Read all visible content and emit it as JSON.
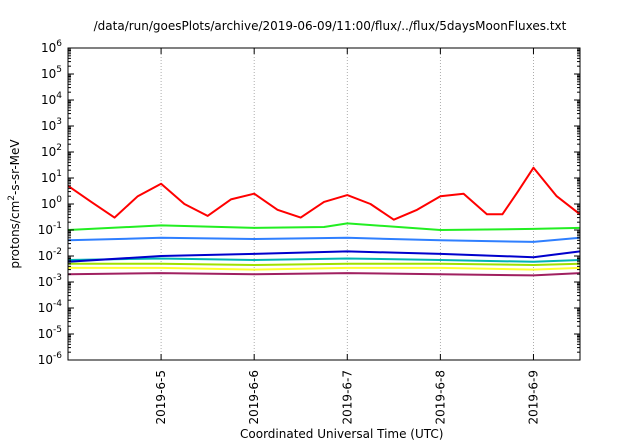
{
  "chart_data": {
    "type": "line",
    "title": "/data/run/goesPlots/archive/2019-06-09/11:00/flux/../flux/5daysMoonFluxes.txt",
    "xlabel": "Coordinated Universal Time (UTC)",
    "ylabel": "protons/cm2-s-sr-MeV",
    "ylabel_parts": {
      "base": "protons/cm",
      "sup": "2",
      "rest": "-s-sr-MeV"
    },
    "y_scale": "log",
    "ylim": [
      1e-06,
      1000000.0
    ],
    "y_ticks": [
      {
        "value": 1e-06,
        "base": "10",
        "exp": "-6"
      },
      {
        "value": 1e-05,
        "base": "10",
        "exp": "-5"
      },
      {
        "value": 0.0001,
        "base": "10",
        "exp": "-4"
      },
      {
        "value": 0.001,
        "base": "10",
        "exp": "-3"
      },
      {
        "value": 0.01,
        "base": "10",
        "exp": "-2"
      },
      {
        "value": 0.1,
        "base": "10",
        "exp": "-1"
      },
      {
        "value": 1,
        "base": "10",
        "exp": "0"
      },
      {
        "value": 10,
        "base": "10",
        "exp": "1"
      },
      {
        "value": 100,
        "base": "10",
        "exp": "2"
      },
      {
        "value": 1000,
        "base": "10",
        "exp": "3"
      },
      {
        "value": 10000,
        "base": "10",
        "exp": "4"
      },
      {
        "value": 100000,
        "base": "10",
        "exp": "5"
      },
      {
        "value": 1000000,
        "base": "10",
        "exp": "6"
      }
    ],
    "xlim": [
      "2019-06-04T00:00",
      "2019-06-09T12:00"
    ],
    "x_ticks": [
      "2019-6-5",
      "2019-6-6",
      "2019-6-7",
      "2019-6-8",
      "2019-6-9"
    ],
    "x_tick_dates": [
      "2019-06-05T00:00",
      "2019-06-06T00:00",
      "2019-06-07T00:00",
      "2019-06-08T00:00",
      "2019-06-09T00:00"
    ],
    "grid": true,
    "legend": "none",
    "series": [
      {
        "color": "#ff0000",
        "x": [
          "2019-06-04T00:00",
          "2019-06-04T06:00",
          "2019-06-04T12:00",
          "2019-06-04T18:00",
          "2019-06-05T00:00",
          "2019-06-05T06:00",
          "2019-06-05T12:00",
          "2019-06-05T18:00",
          "2019-06-06T00:00",
          "2019-06-06T06:00",
          "2019-06-06T12:00",
          "2019-06-06T18:00",
          "2019-06-07T00:00",
          "2019-06-07T06:00",
          "2019-06-07T12:00",
          "2019-06-07T18:00",
          "2019-06-08T00:00",
          "2019-06-08T06:00",
          "2019-06-08T12:00",
          "2019-06-08T16:00",
          "2019-06-08T20:00",
          "2019-06-09T00:00",
          "2019-06-09T06:00",
          "2019-06-09T12:00"
        ],
        "y": [
          5,
          1.2,
          0.3,
          2,
          6,
          1,
          0.35,
          1.5,
          2.5,
          0.6,
          0.3,
          1.2,
          2.2,
          1,
          0.25,
          0.6,
          2,
          2.5,
          0.4,
          0.4,
          3,
          25,
          2,
          0.4
        ]
      },
      {
        "color": "#22ee22",
        "x": [
          "2019-06-04T00:00",
          "2019-06-05T00:00",
          "2019-06-06T00:00",
          "2019-06-06T18:00",
          "2019-06-07T00:00",
          "2019-06-08T00:00",
          "2019-06-09T00:00",
          "2019-06-09T12:00"
        ],
        "y": [
          0.1,
          0.15,
          0.12,
          0.13,
          0.18,
          0.1,
          0.11,
          0.12
        ]
      },
      {
        "color": "#2f7fff",
        "x": [
          "2019-06-04T00:00",
          "2019-06-05T00:00",
          "2019-06-06T00:00",
          "2019-06-07T00:00",
          "2019-06-08T00:00",
          "2019-06-09T00:00",
          "2019-06-09T12:00"
        ],
        "y": [
          0.04,
          0.05,
          0.045,
          0.05,
          0.04,
          0.035,
          0.05
        ]
      },
      {
        "color": "#0000cc",
        "x": [
          "2019-06-04T00:00",
          "2019-06-05T00:00",
          "2019-06-06T00:00",
          "2019-06-07T00:00",
          "2019-06-08T00:00",
          "2019-06-09T00:00",
          "2019-06-09T12:00"
        ],
        "y": [
          0.006,
          0.01,
          0.012,
          0.015,
          0.012,
          0.009,
          0.015
        ]
      },
      {
        "color": "#00b4b4",
        "x": [
          "2019-06-04T00:00",
          "2019-06-05T00:00",
          "2019-06-06T00:00",
          "2019-06-07T00:00",
          "2019-06-08T00:00",
          "2019-06-09T00:00",
          "2019-06-09T12:00"
        ],
        "y": [
          0.007,
          0.008,
          0.007,
          0.008,
          0.007,
          0.006,
          0.007
        ]
      },
      {
        "color": "#a0e000",
        "x": [
          "2019-06-04T00:00",
          "2019-06-05T00:00",
          "2019-06-06T00:00",
          "2019-06-07T00:00",
          "2019-06-08T00:00",
          "2019-06-09T00:00",
          "2019-06-09T12:00"
        ],
        "y": [
          0.005,
          0.005,
          0.0045,
          0.005,
          0.005,
          0.0045,
          0.005
        ]
      },
      {
        "color": "#ffff30",
        "x": [
          "2019-06-04T00:00",
          "2019-06-05T00:00",
          "2019-06-06T00:00",
          "2019-06-07T00:00",
          "2019-06-08T00:00",
          "2019-06-09T00:00",
          "2019-06-09T12:00"
        ],
        "y": [
          0.0035,
          0.0035,
          0.003,
          0.0035,
          0.0035,
          0.003,
          0.0035
        ]
      },
      {
        "color": "#a02060",
        "x": [
          "2019-06-04T00:00",
          "2019-06-05T00:00",
          "2019-06-06T00:00",
          "2019-06-07T00:00",
          "2019-06-08T00:00",
          "2019-06-09T00:00",
          "2019-06-09T12:00"
        ],
        "y": [
          0.002,
          0.0022,
          0.002,
          0.0022,
          0.002,
          0.0018,
          0.0022
        ]
      }
    ]
  }
}
